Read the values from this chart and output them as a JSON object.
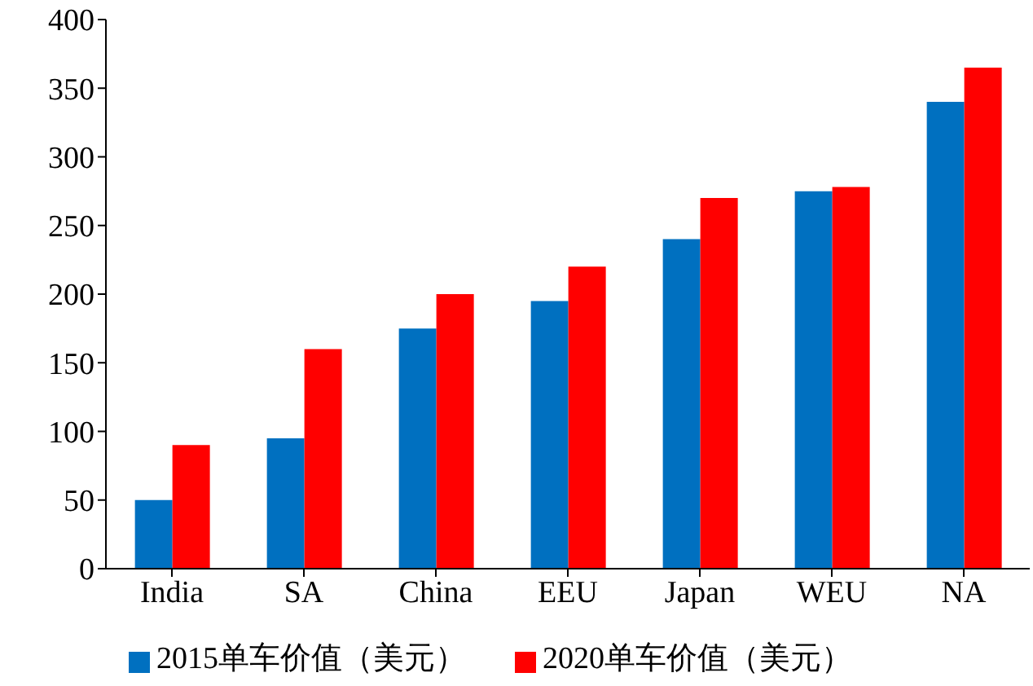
{
  "chart_data": {
    "type": "bar",
    "categories": [
      "India",
      "SA",
      "China",
      "EEU",
      "Japan",
      "WEU",
      "NA"
    ],
    "series": [
      {
        "name": "2015单车价值（美元）",
        "color": "#0070c0",
        "values": [
          50,
          95,
          175,
          195,
          240,
          275,
          340
        ]
      },
      {
        "name": "2020单车价值（美元）",
        "color": "#ff0000",
        "values": [
          90,
          160,
          200,
          220,
          270,
          278,
          365
        ]
      }
    ],
    "ylim": [
      0,
      400
    ],
    "yticks": [
      0,
      50,
      100,
      150,
      200,
      250,
      300,
      350,
      400
    ],
    "grid": false,
    "legend": "bottom"
  }
}
